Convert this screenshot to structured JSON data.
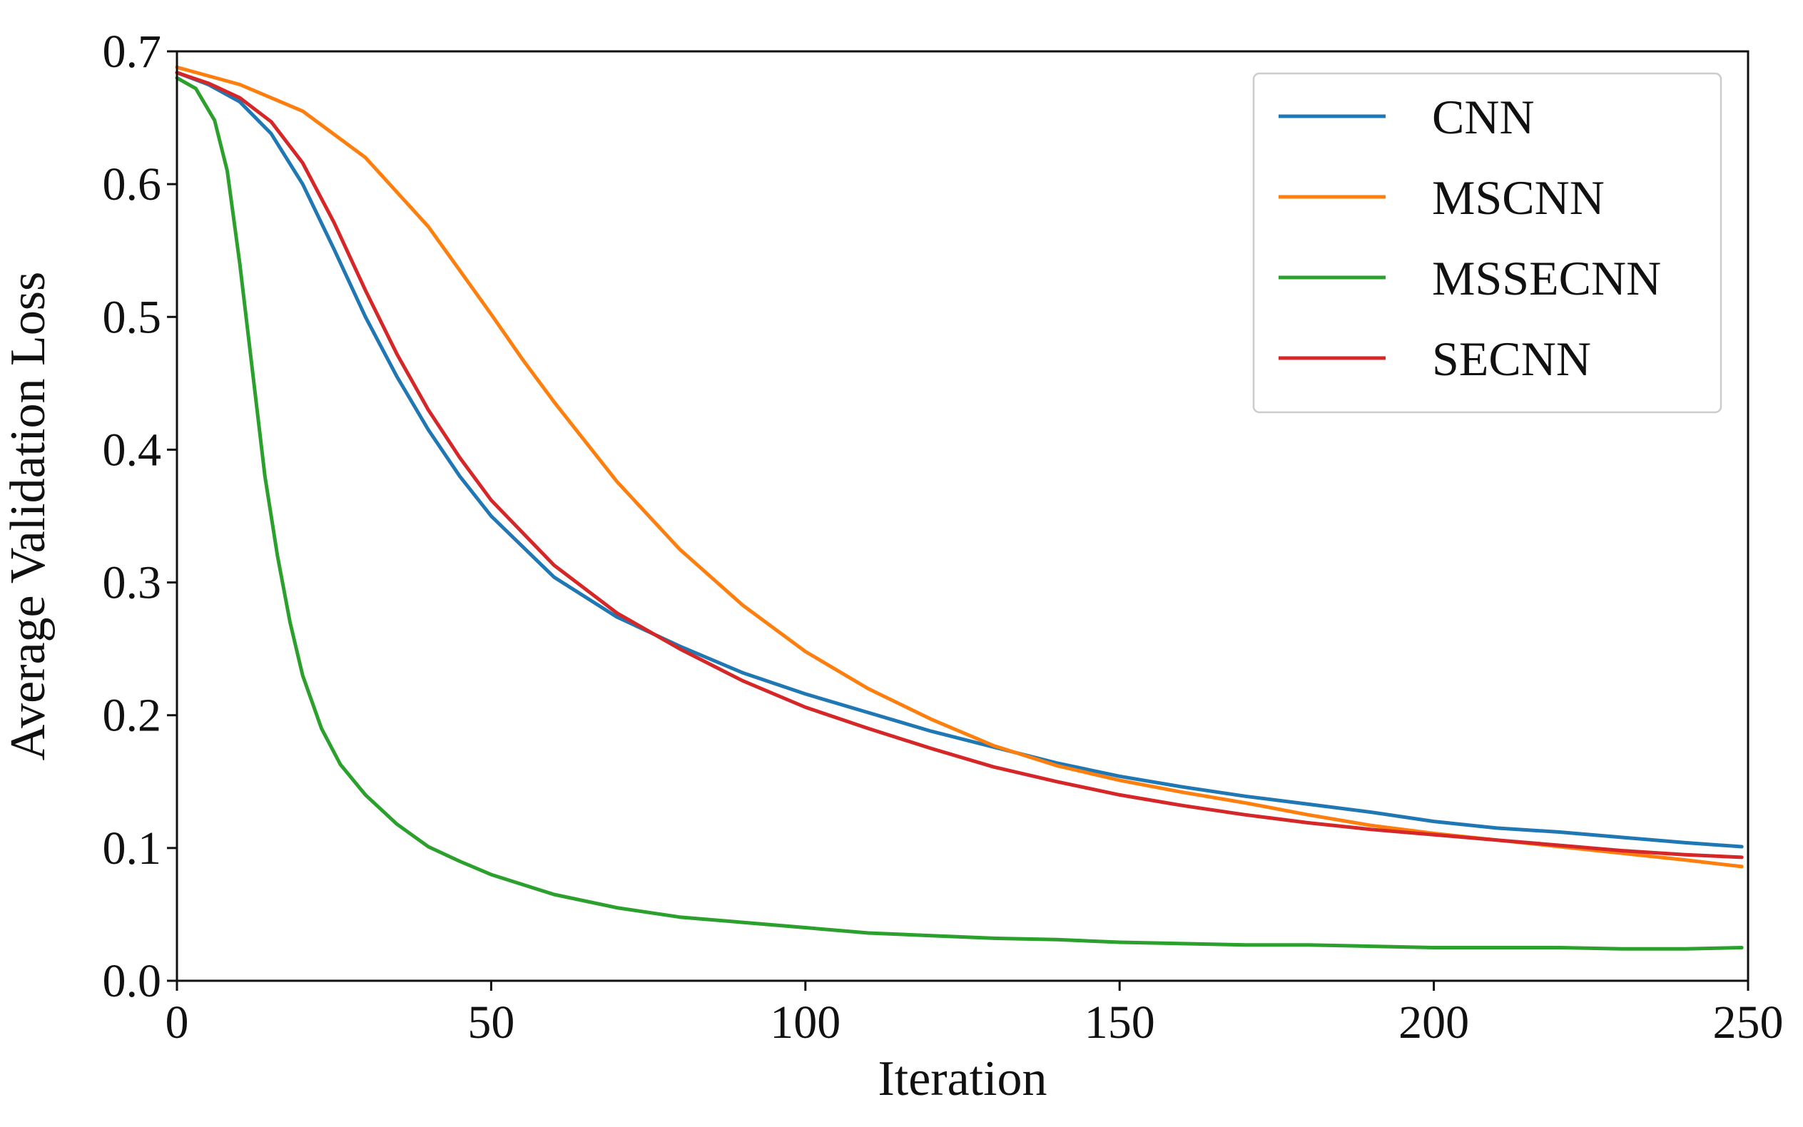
{
  "chart_data": {
    "type": "line",
    "title": "",
    "xlabel": "Iteration",
    "ylabel": "Average Validation Loss",
    "xlim": [
      0,
      250
    ],
    "ylim": [
      0,
      0.7
    ],
    "xticks": [
      0,
      50,
      100,
      150,
      200,
      250
    ],
    "yticks": [
      0.0,
      0.1,
      0.2,
      0.3,
      0.4,
      0.5,
      0.6,
      0.7
    ],
    "xtick_labels": [
      "0",
      "50",
      "100",
      "150",
      "200",
      "250"
    ],
    "ytick_labels": [
      "0.0",
      "0.1",
      "0.2",
      "0.3",
      "0.4",
      "0.5",
      "0.6",
      "0.7"
    ],
    "grid": false,
    "legend_position": "top-right",
    "series": [
      {
        "name": "CNN",
        "color": "#1f77b4",
        "x": [
          0,
          5,
          10,
          15,
          20,
          25,
          30,
          35,
          40,
          45,
          50,
          60,
          70,
          80,
          90,
          100,
          110,
          120,
          130,
          140,
          150,
          160,
          170,
          180,
          190,
          200,
          210,
          220,
          230,
          240,
          249
        ],
        "y": [
          0.684,
          0.675,
          0.662,
          0.638,
          0.6,
          0.551,
          0.5,
          0.455,
          0.415,
          0.38,
          0.35,
          0.304,
          0.274,
          0.252,
          0.232,
          0.216,
          0.202,
          0.188,
          0.176,
          0.164,
          0.154,
          0.146,
          0.139,
          0.133,
          0.127,
          0.12,
          0.115,
          0.112,
          0.108,
          0.104,
          0.101
        ]
      },
      {
        "name": "MSCNN",
        "color": "#ff7f0e",
        "x": [
          0,
          10,
          20,
          30,
          40,
          45,
          50,
          55,
          60,
          70,
          80,
          90,
          100,
          110,
          120,
          130,
          140,
          150,
          160,
          170,
          180,
          190,
          200,
          210,
          220,
          230,
          240,
          249
        ],
        "y": [
          0.688,
          0.675,
          0.655,
          0.62,
          0.568,
          0.535,
          0.502,
          0.468,
          0.436,
          0.376,
          0.325,
          0.283,
          0.248,
          0.22,
          0.197,
          0.177,
          0.162,
          0.151,
          0.142,
          0.134,
          0.125,
          0.117,
          0.111,
          0.106,
          0.101,
          0.096,
          0.091,
          0.086
        ]
      },
      {
        "name": "MSSECNN",
        "color": "#2ca02c",
        "x": [
          0,
          3,
          6,
          8,
          10,
          12,
          14,
          16,
          18,
          20,
          23,
          26,
          30,
          35,
          40,
          45,
          50,
          60,
          70,
          80,
          90,
          100,
          110,
          120,
          130,
          140,
          150,
          160,
          170,
          180,
          190,
          200,
          210,
          220,
          230,
          240,
          249
        ],
        "y": [
          0.68,
          0.672,
          0.648,
          0.61,
          0.54,
          0.46,
          0.38,
          0.32,
          0.27,
          0.23,
          0.19,
          0.163,
          0.14,
          0.118,
          0.101,
          0.09,
          0.08,
          0.065,
          0.055,
          0.048,
          0.044,
          0.04,
          0.036,
          0.034,
          0.032,
          0.031,
          0.029,
          0.028,
          0.027,
          0.027,
          0.026,
          0.025,
          0.025,
          0.025,
          0.024,
          0.024,
          0.025
        ]
      },
      {
        "name": "SECNN",
        "color": "#d62728",
        "x": [
          0,
          5,
          10,
          15,
          20,
          25,
          30,
          35,
          40,
          45,
          50,
          60,
          70,
          80,
          90,
          100,
          110,
          120,
          130,
          140,
          150,
          160,
          170,
          180,
          190,
          200,
          210,
          220,
          230,
          240,
          249
        ],
        "y": [
          0.684,
          0.676,
          0.665,
          0.647,
          0.616,
          0.571,
          0.52,
          0.472,
          0.43,
          0.394,
          0.362,
          0.313,
          0.277,
          0.25,
          0.226,
          0.206,
          0.19,
          0.175,
          0.161,
          0.15,
          0.14,
          0.132,
          0.125,
          0.119,
          0.114,
          0.11,
          0.106,
          0.102,
          0.098,
          0.095,
          0.093
        ]
      }
    ]
  }
}
